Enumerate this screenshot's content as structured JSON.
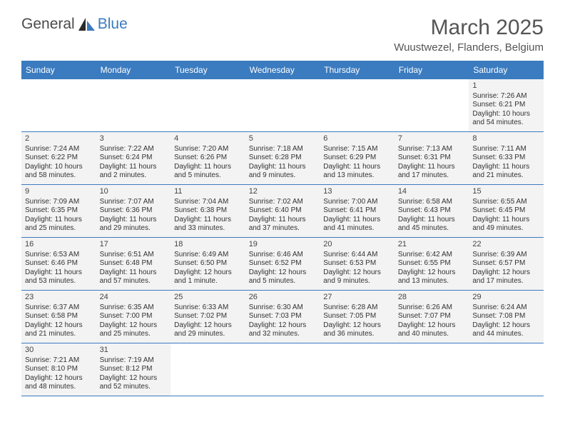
{
  "brand": {
    "name1": "General",
    "name2": "Blue",
    "name2_color": "#3b7bbf"
  },
  "title": "March 2025",
  "location": "Wuustwezel, Flanders, Belgium",
  "colors": {
    "header_bg": "#3b7bbf",
    "header_fg": "#ffffff",
    "cell_bg": "#f3f3f3",
    "border": "#3b7bbf"
  },
  "weekdays": [
    "Sunday",
    "Monday",
    "Tuesday",
    "Wednesday",
    "Thursday",
    "Friday",
    "Saturday"
  ],
  "weeks": [
    [
      null,
      null,
      null,
      null,
      null,
      null,
      {
        "n": "1",
        "sr": "7:26 AM",
        "ss": "6:21 PM",
        "dl": "10 hours and 54 minutes."
      }
    ],
    [
      {
        "n": "2",
        "sr": "7:24 AM",
        "ss": "6:22 PM",
        "dl": "10 hours and 58 minutes."
      },
      {
        "n": "3",
        "sr": "7:22 AM",
        "ss": "6:24 PM",
        "dl": "11 hours and 2 minutes."
      },
      {
        "n": "4",
        "sr": "7:20 AM",
        "ss": "6:26 PM",
        "dl": "11 hours and 5 minutes."
      },
      {
        "n": "5",
        "sr": "7:18 AM",
        "ss": "6:28 PM",
        "dl": "11 hours and 9 minutes."
      },
      {
        "n": "6",
        "sr": "7:15 AM",
        "ss": "6:29 PM",
        "dl": "11 hours and 13 minutes."
      },
      {
        "n": "7",
        "sr": "7:13 AM",
        "ss": "6:31 PM",
        "dl": "11 hours and 17 minutes."
      },
      {
        "n": "8",
        "sr": "7:11 AM",
        "ss": "6:33 PM",
        "dl": "11 hours and 21 minutes."
      }
    ],
    [
      {
        "n": "9",
        "sr": "7:09 AM",
        "ss": "6:35 PM",
        "dl": "11 hours and 25 minutes."
      },
      {
        "n": "10",
        "sr": "7:07 AM",
        "ss": "6:36 PM",
        "dl": "11 hours and 29 minutes."
      },
      {
        "n": "11",
        "sr": "7:04 AM",
        "ss": "6:38 PM",
        "dl": "11 hours and 33 minutes."
      },
      {
        "n": "12",
        "sr": "7:02 AM",
        "ss": "6:40 PM",
        "dl": "11 hours and 37 minutes."
      },
      {
        "n": "13",
        "sr": "7:00 AM",
        "ss": "6:41 PM",
        "dl": "11 hours and 41 minutes."
      },
      {
        "n": "14",
        "sr": "6:58 AM",
        "ss": "6:43 PM",
        "dl": "11 hours and 45 minutes."
      },
      {
        "n": "15",
        "sr": "6:55 AM",
        "ss": "6:45 PM",
        "dl": "11 hours and 49 minutes."
      }
    ],
    [
      {
        "n": "16",
        "sr": "6:53 AM",
        "ss": "6:46 PM",
        "dl": "11 hours and 53 minutes."
      },
      {
        "n": "17",
        "sr": "6:51 AM",
        "ss": "6:48 PM",
        "dl": "11 hours and 57 minutes."
      },
      {
        "n": "18",
        "sr": "6:49 AM",
        "ss": "6:50 PM",
        "dl": "12 hours and 1 minute."
      },
      {
        "n": "19",
        "sr": "6:46 AM",
        "ss": "6:52 PM",
        "dl": "12 hours and 5 minutes."
      },
      {
        "n": "20",
        "sr": "6:44 AM",
        "ss": "6:53 PM",
        "dl": "12 hours and 9 minutes."
      },
      {
        "n": "21",
        "sr": "6:42 AM",
        "ss": "6:55 PM",
        "dl": "12 hours and 13 minutes."
      },
      {
        "n": "22",
        "sr": "6:39 AM",
        "ss": "6:57 PM",
        "dl": "12 hours and 17 minutes."
      }
    ],
    [
      {
        "n": "23",
        "sr": "6:37 AM",
        "ss": "6:58 PM",
        "dl": "12 hours and 21 minutes."
      },
      {
        "n": "24",
        "sr": "6:35 AM",
        "ss": "7:00 PM",
        "dl": "12 hours and 25 minutes."
      },
      {
        "n": "25",
        "sr": "6:33 AM",
        "ss": "7:02 PM",
        "dl": "12 hours and 29 minutes."
      },
      {
        "n": "26",
        "sr": "6:30 AM",
        "ss": "7:03 PM",
        "dl": "12 hours and 32 minutes."
      },
      {
        "n": "27",
        "sr": "6:28 AM",
        "ss": "7:05 PM",
        "dl": "12 hours and 36 minutes."
      },
      {
        "n": "28",
        "sr": "6:26 AM",
        "ss": "7:07 PM",
        "dl": "12 hours and 40 minutes."
      },
      {
        "n": "29",
        "sr": "6:24 AM",
        "ss": "7:08 PM",
        "dl": "12 hours and 44 minutes."
      }
    ],
    [
      {
        "n": "30",
        "sr": "7:21 AM",
        "ss": "8:10 PM",
        "dl": "12 hours and 48 minutes."
      },
      {
        "n": "31",
        "sr": "7:19 AM",
        "ss": "8:12 PM",
        "dl": "12 hours and 52 minutes."
      },
      null,
      null,
      null,
      null,
      null
    ]
  ],
  "labels": {
    "sunrise": "Sunrise:",
    "sunset": "Sunset:",
    "daylight": "Daylight:"
  }
}
